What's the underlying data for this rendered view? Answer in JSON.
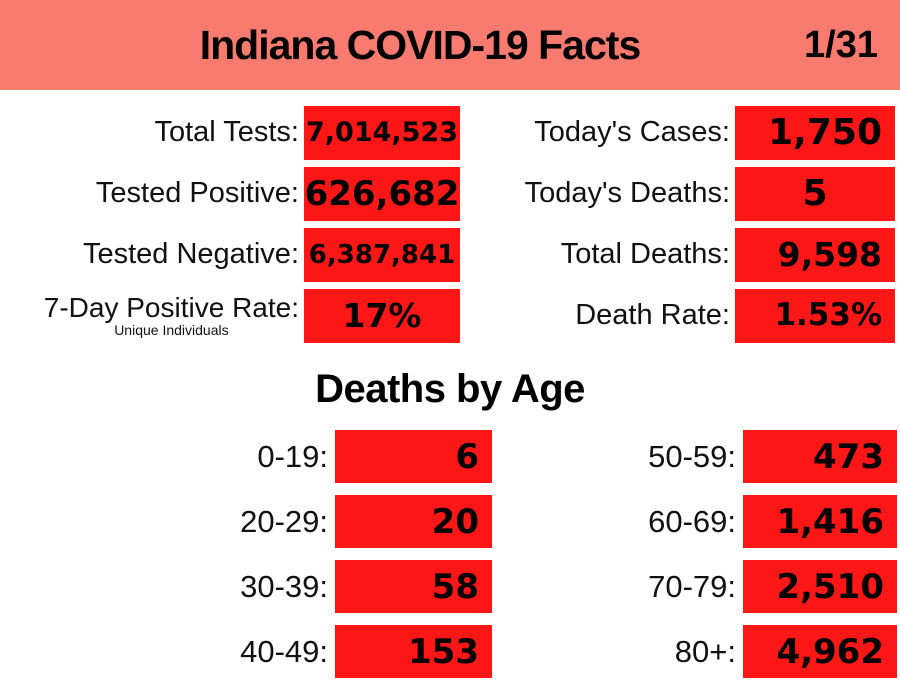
{
  "header": {
    "title": "Indiana COVID-19 Facts",
    "date": "1/31"
  },
  "colors": {
    "header_bg": "#F97B70",
    "box_red": "#FF1616",
    "text": "#000000"
  },
  "stats": {
    "left": [
      {
        "label": "Total Tests:",
        "value": "7,014,523"
      },
      {
        "label": "Tested Positive:",
        "value": "626,682"
      },
      {
        "label": "Tested Negative:",
        "value": "6,387,841"
      },
      {
        "label": "7-Day Positive Rate:",
        "sublabel": "Unique Individuals",
        "value": "17%"
      }
    ],
    "right": [
      {
        "label": "Today's Cases:",
        "value": "1,750"
      },
      {
        "label": "Today's Deaths:",
        "value": "5"
      },
      {
        "label": "Total Deaths:",
        "value": "9,598"
      },
      {
        "label": "Death Rate:",
        "value": "1.53%"
      }
    ]
  },
  "deaths_by_age": {
    "title": "Deaths by Age",
    "left": [
      {
        "label": "0-19:",
        "value": "6"
      },
      {
        "label": "20-29:",
        "value": "20"
      },
      {
        "label": "30-39:",
        "value": "58"
      },
      {
        "label": "40-49:",
        "value": "153"
      }
    ],
    "right": [
      {
        "label": "50-59:",
        "value": "473"
      },
      {
        "label": "60-69:",
        "value": "1,416"
      },
      {
        "label": "70-79:",
        "value": "2,510"
      },
      {
        "label": "80+:",
        "value": "4,962"
      }
    ]
  },
  "chart_data": {
    "type": "table",
    "title": "Indiana COVID-19 Facts",
    "date": "1/31",
    "stats": {
      "total_tests": 7014523,
      "tested_positive": 626682,
      "tested_negative": 6387841,
      "seven_day_positive_rate_pct": 17,
      "seven_day_positive_rate_note": "Unique Individuals",
      "todays_cases": 1750,
      "todays_deaths": 5,
      "total_deaths": 9598,
      "death_rate_pct": 1.53
    },
    "deaths_by_age": {
      "title": "Deaths by Age",
      "categories": [
        "0-19",
        "20-29",
        "30-39",
        "40-49",
        "50-59",
        "60-69",
        "70-79",
        "80+"
      ],
      "values": [
        6,
        20,
        58,
        153,
        473,
        1416,
        2510,
        4962
      ]
    }
  }
}
